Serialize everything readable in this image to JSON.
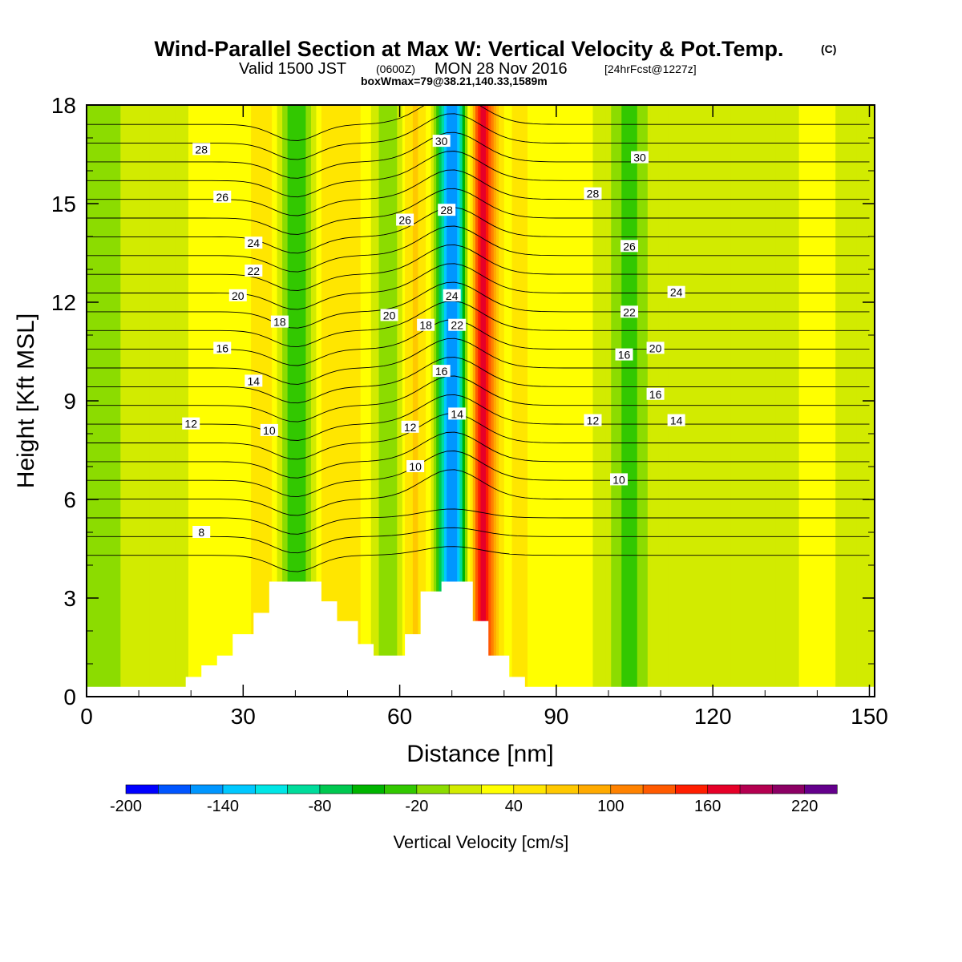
{
  "title": {
    "main": "Wind-Parallel Section at Max W: Vertical Velocity & Pot.Temp.",
    "copyright": "(C)",
    "valid_prefix": "Valid 1500 JST",
    "valid_zulu": "(0600Z)",
    "valid_date": "MON 28 Nov 2016",
    "forecast": "[24hrFcst@1227z]",
    "boxinfo": "boxWmax=79@38.21,140.33,1589m"
  },
  "colors": {
    "fill_levels": [
      "#0000ff",
      "#0055ff",
      "#0096ff",
      "#00c8ff",
      "#00e6e6",
      "#00dc9b",
      "#00c850",
      "#00b400",
      "#32c800",
      "#8cdc00",
      "#d2eb00",
      "#ffff00",
      "#ffe600",
      "#ffc800",
      "#ffaa00",
      "#ff8200",
      "#ff5a00",
      "#ff1e00",
      "#e60028",
      "#b40050",
      "#8c0064",
      "#64008c"
    ],
    "contour": "#000000",
    "terrain": "#ffffff"
  },
  "chart_data": {
    "type": "heatmap",
    "xlabel": "Distance [nm]",
    "ylabel": "Height [Kft MSL]",
    "xlim": [
      0,
      151
    ],
    "ylim": [
      0,
      18
    ],
    "xticks": [
      0,
      30,
      60,
      90,
      120,
      150
    ],
    "yticks": [
      0,
      3,
      6,
      9,
      12,
      15,
      18
    ],
    "colorbar": {
      "title": "Vertical Velocity [cm/s]",
      "levels": [
        -200,
        -180,
        -160,
        -140,
        -120,
        -100,
        -80,
        -60,
        -40,
        -20,
        0,
        20,
        40,
        60,
        80,
        100,
        120,
        140,
        160,
        180,
        200,
        220,
        240
      ],
      "tick_labels": [
        "-200",
        "-140",
        "-80",
        "-20",
        "40",
        "100",
        "160",
        "220"
      ]
    },
    "vertical_velocity_features": [
      {
        "x_center": 0,
        "half_width": 14,
        "value": -10
      },
      {
        "x_center": 24,
        "half_width": 5,
        "value": 30
      },
      {
        "x_center": 34,
        "half_width": 4,
        "value": 45
      },
      {
        "x_center": 40,
        "half_width": 3.5,
        "value": -50
      },
      {
        "x_center": 46,
        "half_width": 2.5,
        "value": 45
      },
      {
        "x_center": 51,
        "half_width": 3.5,
        "value": 40
      },
      {
        "x_center": 58,
        "half_width": 2.5,
        "value": -30
      },
      {
        "x_center": 63,
        "half_width": 3,
        "value": 55
      },
      {
        "x_center": 70,
        "half_width": 2.5,
        "value": -170
      },
      {
        "x_center": 76,
        "half_width": 2.5,
        "value": 155
      },
      {
        "x_center": 83,
        "half_width": 4,
        "value": 35
      },
      {
        "x_center": 93,
        "half_width": 5,
        "value": 25
      },
      {
        "x_center": 104,
        "half_width": 3,
        "value": -35
      },
      {
        "x_center": 113,
        "half_width": 4,
        "value": 10
      },
      {
        "x_center": 140,
        "half_width": 4,
        "value": 25
      }
    ],
    "terrain_kft": {
      "x": [
        0,
        19,
        19,
        22,
        22,
        25,
        25,
        28,
        28,
        32,
        32,
        35,
        35,
        45,
        45,
        48,
        48,
        52,
        52,
        55,
        55,
        61,
        61,
        64,
        64,
        68,
        68,
        74,
        74,
        77,
        77,
        81,
        81,
        84,
        84,
        151
      ],
      "height": [
        0.3,
        0.3,
        0.6,
        0.6,
        0.95,
        0.95,
        1.25,
        1.25,
        1.9,
        1.9,
        2.55,
        2.55,
        3.5,
        3.5,
        2.9,
        2.9,
        2.3,
        2.3,
        1.6,
        1.6,
        1.25,
        1.25,
        1.9,
        1.9,
        3.2,
        3.2,
        3.5,
        3.5,
        2.3,
        2.3,
        1.25,
        1.25,
        0.6,
        0.6,
        0.3,
        0.3
      ]
    },
    "theta_contour_labels": [
      {
        "value": "28",
        "x": 22,
        "y": 16.65
      },
      {
        "value": "26",
        "x": 26,
        "y": 15.2
      },
      {
        "value": "24",
        "x": 32,
        "y": 13.8
      },
      {
        "value": "22",
        "x": 32,
        "y": 12.95
      },
      {
        "value": "20",
        "x": 29,
        "y": 12.2
      },
      {
        "value": "18",
        "x": 37,
        "y": 11.4
      },
      {
        "value": "16",
        "x": 26,
        "y": 10.6
      },
      {
        "value": "14",
        "x": 32,
        "y": 9.6
      },
      {
        "value": "12",
        "x": 20,
        "y": 8.3
      },
      {
        "value": "10",
        "x": 35,
        "y": 8.1
      },
      {
        "value": "8",
        "x": 22,
        "y": 5.0
      },
      {
        "value": "20",
        "x": 58,
        "y": 11.6
      },
      {
        "value": "26",
        "x": 61,
        "y": 14.5
      },
      {
        "value": "18",
        "x": 65,
        "y": 11.3
      },
      {
        "value": "12",
        "x": 62,
        "y": 8.2
      },
      {
        "value": "10",
        "x": 63,
        "y": 7.0
      },
      {
        "value": "30",
        "x": 68,
        "y": 16.9
      },
      {
        "value": "28",
        "x": 69,
        "y": 14.8
      },
      {
        "value": "24",
        "x": 70,
        "y": 12.2
      },
      {
        "value": "22",
        "x": 71,
        "y": 11.3
      },
      {
        "value": "16",
        "x": 68,
        "y": 9.9
      },
      {
        "value": "14",
        "x": 71,
        "y": 8.6
      },
      {
        "value": "30",
        "x": 106,
        "y": 16.4
      },
      {
        "value": "28",
        "x": 97,
        "y": 15.3
      },
      {
        "value": "26",
        "x": 104,
        "y": 13.7
      },
      {
        "value": "24",
        "x": 113,
        "y": 12.3
      },
      {
        "value": "22",
        "x": 104,
        "y": 11.7
      },
      {
        "value": "20",
        "x": 109,
        "y": 10.6
      },
      {
        "value": "16",
        "x": 103,
        "y": 10.4
      },
      {
        "value": "16",
        "x": 109,
        "y": 9.2
      },
      {
        "value": "12",
        "x": 97,
        "y": 8.4
      },
      {
        "value": "14",
        "x": 113,
        "y": 8.4
      },
      {
        "value": "10",
        "x": 102,
        "y": 6.6
      }
    ],
    "grid": false
  }
}
